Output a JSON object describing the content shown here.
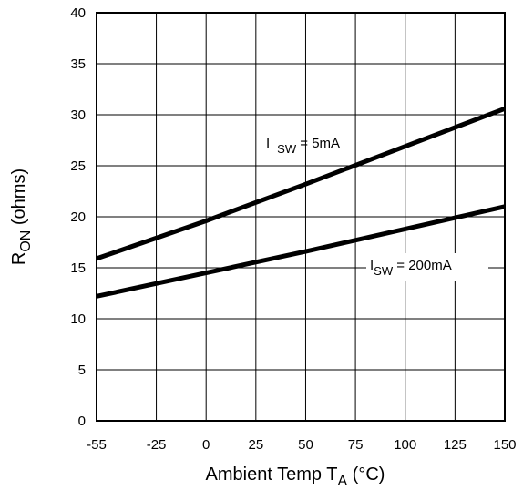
{
  "chart_data": {
    "type": "line",
    "x_ticks": [
      -55,
      -25,
      0,
      25,
      50,
      75,
      100,
      125,
      150
    ],
    "y_ticks": [
      0,
      5,
      10,
      15,
      20,
      25,
      30,
      35,
      40
    ],
    "xlim": [
      -55,
      150
    ],
    "ylim": [
      0,
      40
    ],
    "grid": true,
    "xlabel": {
      "main": "Ambient Temp T",
      "sub": "A",
      "tail": " (°C)"
    },
    "ylabel": {
      "main": "R",
      "sub": "ON",
      "tail": " (ohms)"
    },
    "series": [
      {
        "name_parts": {
          "main": "I",
          "sub": "SW",
          "tail": " = 5mA"
        },
        "x": [
          -55,
          0,
          50,
          100,
          150
        ],
        "y": [
          15.9,
          19.6,
          23.2,
          26.9,
          30.6
        ]
      },
      {
        "name_parts": {
          "main": "I",
          "sub": "SW",
          "tail": " = 200mA"
        },
        "x": [
          -55,
          0,
          50,
          100,
          150
        ],
        "y": [
          12.2,
          14.5,
          16.6,
          18.8,
          21.0
        ]
      }
    ]
  }
}
